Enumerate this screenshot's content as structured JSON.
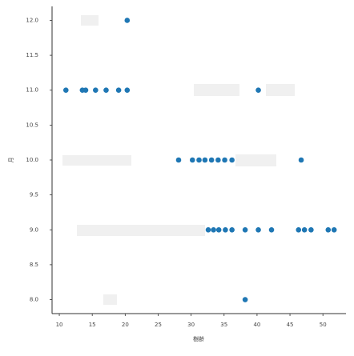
{
  "chart_data": {
    "type": "scatter",
    "xlabel": "樹齢",
    "ylabel": "月",
    "xlim": [
      8.9,
      53.5
    ],
    "ylim": [
      7.8,
      12.2
    ],
    "xticks": [
      10,
      15,
      20,
      25,
      30,
      35,
      40,
      45,
      50
    ],
    "yticks": [
      {
        "value": 8,
        "label": "8.0"
      },
      {
        "value": 8.5,
        "label": "8.5"
      },
      {
        "value": 9,
        "label": "9.0"
      },
      {
        "value": 9.5,
        "label": "9.5"
      },
      {
        "value": 10,
        "label": "10.0"
      },
      {
        "value": 10.5,
        "label": "10.5"
      },
      {
        "value": 11,
        "label": "11.0"
      },
      {
        "value": 11.5,
        "label": "11.5"
      },
      {
        "value": 12,
        "label": "12.0"
      }
    ],
    "series": [
      {
        "color": "#1f77b4",
        "x": [
          20.3,
          11.0,
          13.5,
          14.0,
          15.5,
          17.1,
          19.0,
          20.3,
          40.2,
          28.1,
          30.2,
          31.2,
          32.1,
          33.1,
          34.1,
          35.1,
          36.2,
          46.7,
          32.6,
          33.4,
          34.2,
          35.2,
          36.2,
          38.2,
          40.2,
          42.2,
          46.3,
          47.2,
          48.2,
          50.8,
          51.7,
          38.2
        ],
        "y": [
          12,
          11,
          11,
          11,
          11,
          11,
          11,
          11,
          11,
          10,
          10,
          10,
          10,
          10,
          10,
          10,
          10,
          10,
          9,
          9,
          9,
          9,
          9,
          9,
          9,
          9,
          9,
          9,
          9,
          9,
          9,
          8
        ]
      }
    ]
  }
}
